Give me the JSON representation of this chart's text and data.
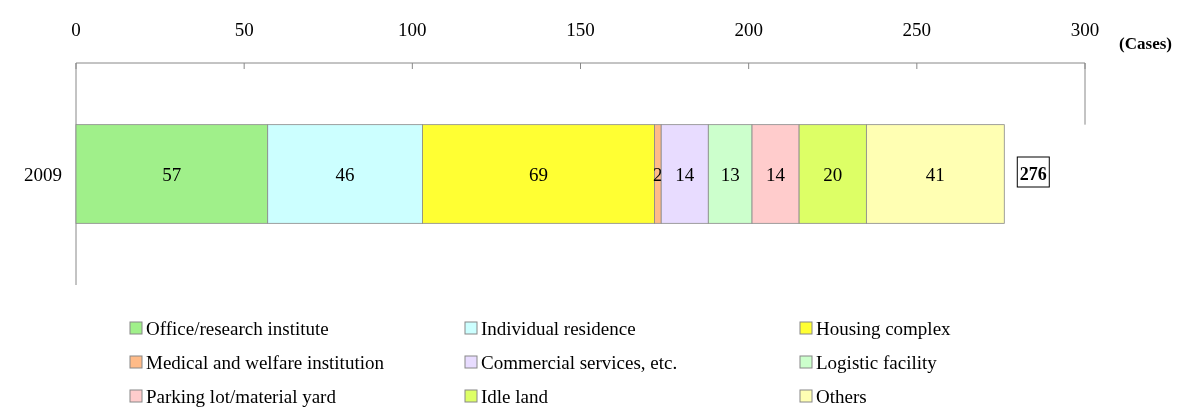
{
  "chart_data": {
    "type": "bar",
    "orientation": "horizontal",
    "stacked": true,
    "xlabel": "(Cases)",
    "categories": [
      "2009"
    ],
    "xlim": [
      0,
      300
    ],
    "xticks": [
      0,
      50,
      100,
      150,
      200,
      250,
      300
    ],
    "data_labels": true,
    "totals": [
      "276"
    ],
    "legend": "bottom",
    "grid": false,
    "series": [
      {
        "name": "Office/research institute",
        "color": "#a0f08a",
        "values": [
          57
        ]
      },
      {
        "name": "Individual residence",
        "color": "#ccffff",
        "values": [
          46
        ]
      },
      {
        "name": "Housing complex",
        "color": "#ffff33",
        "values": [
          69
        ]
      },
      {
        "name": "Medical and welfare institution",
        "color": "#ffbb88",
        "values": [
          2
        ]
      },
      {
        "name": "Commercial services, etc.",
        "color": "#e8dcff",
        "values": [
          14
        ]
      },
      {
        "name": "Logistic facility",
        "color": "#ccffcc",
        "values": [
          13
        ]
      },
      {
        "name": "Parking lot/material yard",
        "color": "#ffcccc",
        "values": [
          14
        ]
      },
      {
        "name": "Idle land",
        "color": "#ddff66",
        "values": [
          20
        ]
      },
      {
        "name": "Others",
        "color": "#ffffb3",
        "values": [
          41
        ]
      }
    ]
  }
}
